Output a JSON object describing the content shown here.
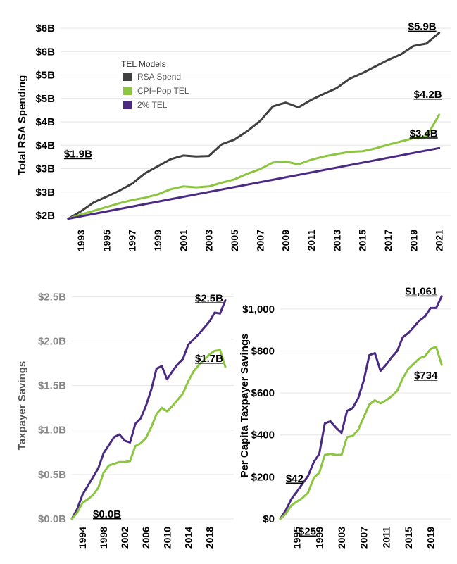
{
  "colors": {
    "rsa": "#404040",
    "cpi": "#8cc540",
    "tel": "#4b2a83",
    "grid": "#e6e6e6",
    "tick_main": "#000000",
    "tick_sub": "#888888",
    "ytitle_sub": "#555555"
  },
  "chart_data": [
    {
      "type": "line",
      "ylabel": "Total RSA Spending",
      "ylim": [
        1.85,
        6.0
      ],
      "y_ticks": [
        {
          "value": 2.0,
          "label": "$2B"
        },
        {
          "value": 2.5,
          "label": "$3B"
        },
        {
          "value": 3.0,
          "label": "$3B"
        },
        {
          "value": 3.5,
          "label": "$4B"
        },
        {
          "value": 4.0,
          "label": "$4B"
        },
        {
          "value": 4.5,
          "label": "$5B"
        },
        {
          "value": 5.0,
          "label": "$5B"
        },
        {
          "value": 5.5,
          "label": "$6B"
        },
        {
          "value": 6.0,
          "label": "$6B"
        }
      ],
      "x_range": [
        1991.4,
        2021.9
      ],
      "x_ticks": [
        "1993",
        "1995",
        "1997",
        "1999",
        "2001",
        "2003",
        "2005",
        "2007",
        "2009",
        "2011",
        "2013",
        "2015",
        "2017",
        "2019",
        "2021"
      ],
      "legend": {
        "title": "TEL Models",
        "entries": [
          {
            "label": "RSA Spend",
            "color_key": "rsa"
          },
          {
            "label": "CPI+Pop TEL",
            "color_key": "cpi"
          },
          {
            "label": "2% TEL",
            "color_key": "tel"
          }
        ]
      },
      "series": [
        {
          "name": "RSA Spend",
          "color_key": "rsa",
          "x": [
            1992,
            1993,
            1994,
            1995,
            1996,
            1997,
            1998,
            1999,
            2000,
            2001,
            2002,
            2003,
            2004,
            2005,
            2006,
            2007,
            2008,
            2009,
            2010,
            2011,
            2012,
            2013,
            2014,
            2015,
            2016,
            2017,
            2018,
            2019,
            2020,
            2021
          ],
          "y": [
            1.93,
            2.09,
            2.28,
            2.4,
            2.53,
            2.68,
            2.9,
            3.05,
            3.2,
            3.28,
            3.26,
            3.27,
            3.52,
            3.62,
            3.8,
            4.02,
            4.33,
            4.41,
            4.31,
            4.47,
            4.6,
            4.72,
            4.92,
            5.04,
            5.18,
            5.32,
            5.44,
            5.62,
            5.67,
            5.9
          ]
        },
        {
          "name": "CPI+Pop TEL",
          "color_key": "cpi",
          "x": [
            1992,
            1993,
            1994,
            1995,
            1996,
            1997,
            1998,
            1999,
            2000,
            2001,
            2002,
            2003,
            2004,
            2005,
            2006,
            2007,
            2008,
            2009,
            2010,
            2011,
            2012,
            2013,
            2014,
            2015,
            2016,
            2017,
            2018,
            2019,
            2020,
            2021
          ],
          "y": [
            1.93,
            2.02,
            2.1,
            2.18,
            2.26,
            2.33,
            2.38,
            2.45,
            2.56,
            2.62,
            2.6,
            2.62,
            2.7,
            2.77,
            2.89,
            2.99,
            3.13,
            3.15,
            3.09,
            3.19,
            3.26,
            3.31,
            3.36,
            3.37,
            3.43,
            3.51,
            3.58,
            3.65,
            3.68,
            4.15
          ]
        },
        {
          "name": "2% TEL",
          "color_key": "tel",
          "x": [
            1992,
            2021
          ],
          "y": [
            1.93,
            3.44
          ]
        }
      ],
      "annotations": [
        {
          "text": "$5.9B",
          "x": 2021,
          "y": 5.9,
          "anchor": "end",
          "dx": -4,
          "dy": -4
        },
        {
          "text": "$4.2B",
          "x": 2021,
          "y": 4.15,
          "anchor": "end",
          "dx": 4,
          "dy": -24
        },
        {
          "text": "$3.4B",
          "x": 2021,
          "y": 3.44,
          "anchor": "end",
          "dx": -2,
          "dy": -16
        },
        {
          "text": "$1.9B",
          "x": 1992,
          "y": 1.93,
          "anchor": "middle",
          "dx": 14,
          "dy": -87
        }
      ]
    },
    {
      "type": "line",
      "ylabel": "Taxpayer Savings",
      "ylim": [
        0,
        2.55
      ],
      "y_ticks": [
        {
          "value": 0.0,
          "label": "$0.0B"
        },
        {
          "value": 0.5,
          "label": "$0.5B"
        },
        {
          "value": 1.0,
          "label": "$1.0B"
        },
        {
          "value": 1.5,
          "label": "$1.5B"
        },
        {
          "value": 2.0,
          "label": "$2.0B"
        },
        {
          "value": 2.5,
          "label": "$2.5B"
        }
      ],
      "x_range": [
        1992.0,
        2022.6
      ],
      "x_ticks": [
        "1994",
        "1998",
        "2002",
        "2006",
        "2010",
        "2014",
        "2018"
      ],
      "series": [
        {
          "name": "2% TEL",
          "color_key": "tel",
          "x": [
            1992,
            1993,
            1994,
            1995,
            1996,
            1997,
            1998,
            1999,
            2000,
            2001,
            2002,
            2003,
            2004,
            2005,
            2006,
            2007,
            2008,
            2009,
            2010,
            2011,
            2012,
            2013,
            2014,
            2015,
            2016,
            2017,
            2018,
            2019,
            2020,
            2021
          ],
          "y": [
            0.0,
            0.11,
            0.27,
            0.37,
            0.47,
            0.57,
            0.74,
            0.83,
            0.92,
            0.95,
            0.88,
            0.86,
            1.07,
            1.13,
            1.27,
            1.45,
            1.69,
            1.72,
            1.57,
            1.66,
            1.74,
            1.8,
            1.96,
            2.02,
            2.08,
            2.15,
            2.22,
            2.32,
            2.31,
            2.46
          ]
        },
        {
          "name": "CPI+Pop TEL",
          "color_key": "cpi",
          "x": [
            1992,
            1993,
            1994,
            1995,
            1996,
            1997,
            1998,
            1999,
            2000,
            2001,
            2002,
            2003,
            2004,
            2005,
            2006,
            2007,
            2008,
            2009,
            2010,
            2011,
            2012,
            2013,
            2014,
            2015,
            2016,
            2017,
            2018,
            2019,
            2020,
            2021
          ],
          "y": [
            0.0,
            0.07,
            0.18,
            0.22,
            0.27,
            0.35,
            0.52,
            0.6,
            0.62,
            0.64,
            0.64,
            0.65,
            0.82,
            0.85,
            0.91,
            1.03,
            1.18,
            1.25,
            1.21,
            1.27,
            1.34,
            1.41,
            1.55,
            1.66,
            1.73,
            1.79,
            1.85,
            1.89,
            1.9,
            1.71
          ]
        }
      ],
      "annotations": [
        {
          "text": "$2.5B",
          "x": 2021,
          "y": 2.46,
          "anchor": "end",
          "dx": -3,
          "dy": 2
        },
        {
          "text": "$1.7B",
          "x": 2021,
          "y": 1.71,
          "anchor": "end",
          "dx": -3,
          "dy": -7
        },
        {
          "text": "$0.0B",
          "x": 1992,
          "y": 0.0,
          "anchor": "start",
          "dx": 30,
          "dy": -2
        }
      ]
    },
    {
      "type": "line",
      "ylabel": "Per Capita Taxpayer Savings",
      "ylim": [
        0,
        1080
      ],
      "y_ticks": [
        {
          "value": 0,
          "label": "$0"
        },
        {
          "value": 200,
          "label": "$200"
        },
        {
          "value": 400,
          "label": "$400"
        },
        {
          "value": 600,
          "label": "$600"
        },
        {
          "value": 800,
          "label": "$800"
        },
        {
          "value": 1000,
          "label": "$1,000"
        }
      ],
      "x_range": [
        1992.0,
        2022.6
      ],
      "x_ticks": [
        "1995",
        "1999",
        "2003",
        "2007",
        "2011",
        "2015",
        "2019"
      ],
      "series": [
        {
          "name": "2% TEL",
          "color_key": "tel",
          "x": [
            1992,
            1993,
            1994,
            1995,
            1996,
            1997,
            1998,
            1999,
            2000,
            2001,
            2002,
            2003,
            2004,
            2005,
            2006,
            2007,
            2008,
            2009,
            2010,
            2011,
            2012,
            2013,
            2014,
            2015,
            2016,
            2017,
            2018,
            2019,
            2020,
            2021
          ],
          "y": [
            0,
            42,
            95,
            130,
            168,
            205,
            270,
            310,
            455,
            465,
            435,
            410,
            515,
            528,
            575,
            660,
            780,
            790,
            705,
            735,
            770,
            800,
            865,
            885,
            915,
            945,
            965,
            1005,
            1005,
            1061
          ]
        },
        {
          "name": "CPI+Pop TEL",
          "color_key": "cpi",
          "x": [
            1992,
            1993,
            1994,
            1995,
            1996,
            1997,
            1998,
            1999,
            2000,
            2001,
            2002,
            2003,
            2004,
            2005,
            2006,
            2007,
            2008,
            2009,
            2010,
            2011,
            2012,
            2013,
            2014,
            2015,
            2016,
            2017,
            2018,
            2019,
            2020,
            2021
          ],
          "y": [
            0,
            25,
            65,
            83,
            100,
            125,
            195,
            220,
            305,
            310,
            305,
            305,
            390,
            395,
            425,
            485,
            545,
            565,
            550,
            565,
            585,
            610,
            670,
            715,
            740,
            765,
            775,
            810,
            820,
            734
          ]
        }
      ],
      "annotations": [
        {
          "text": "$1,061",
          "x": 2021,
          "y": 1061,
          "anchor": "end",
          "dx": -6,
          "dy": -2
        },
        {
          "text": "$734",
          "x": 2021,
          "y": 734,
          "anchor": "end",
          "dx": -6,
          "dy": 20
        },
        {
          "text": "$42",
          "x": 1993,
          "y": 42,
          "anchor": "start",
          "dx": 0,
          "dy": -40
        },
        {
          "text": "$25",
          "x": 1993,
          "y": 25,
          "anchor": "start",
          "dx": 18,
          "dy": 30
        }
      ]
    }
  ]
}
